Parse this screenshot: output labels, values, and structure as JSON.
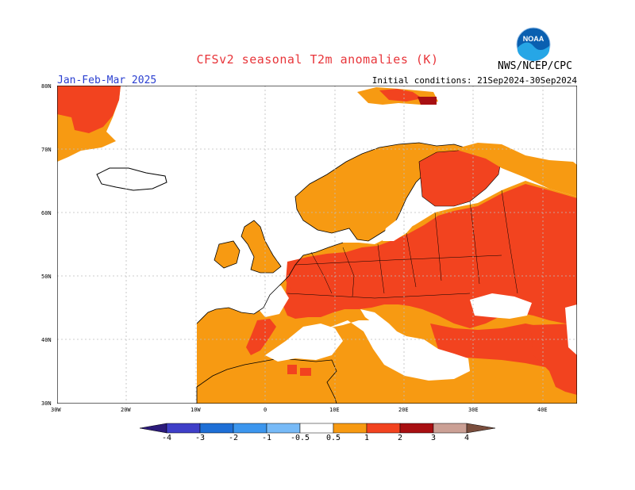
{
  "title": "CFSv2 seasonal T2m anomalies (K)",
  "season": "Jan-Feb-Mar 2025",
  "initial_conditions": "Initial conditions: 21Sep2024-30Sep2024",
  "agency": "NWS/NCEP/CPC",
  "logo_text": "NOAA",
  "map": {
    "lon_ticks": [
      "30W",
      "20W",
      "10W",
      "0",
      "10E",
      "20E",
      "30E",
      "40E"
    ],
    "lat_ticks": [
      "80N",
      "70N",
      "60N",
      "50N",
      "40N",
      "30N"
    ],
    "grid": true
  },
  "colorbar": {
    "labels": [
      "-4",
      "-3",
      "-2",
      "-1",
      "-0.5",
      "0.5",
      "1",
      "2",
      "3",
      "4"
    ],
    "colors": {
      "lt_-4": "#2b1a7a",
      "-4_-3": "#3f3fc8",
      "-3_-2": "#1e6fd6",
      "-2_-1": "#3c96ee",
      "-1_-0.5": "#77baf7",
      "-0.5_0.5": "#ffffff",
      "0.5_1": "#f79a12",
      "1_2": "#f2431f",
      "2_3": "#a80f12",
      "3_4": "#cba095",
      "gt_4": "#7a4e3d"
    }
  },
  "anomaly_legend": {
    "white": "-0.5 to 0.5",
    "orange": "0.5 to 1",
    "red": "1 to 2",
    "dark_red": "2 to 3"
  }
}
